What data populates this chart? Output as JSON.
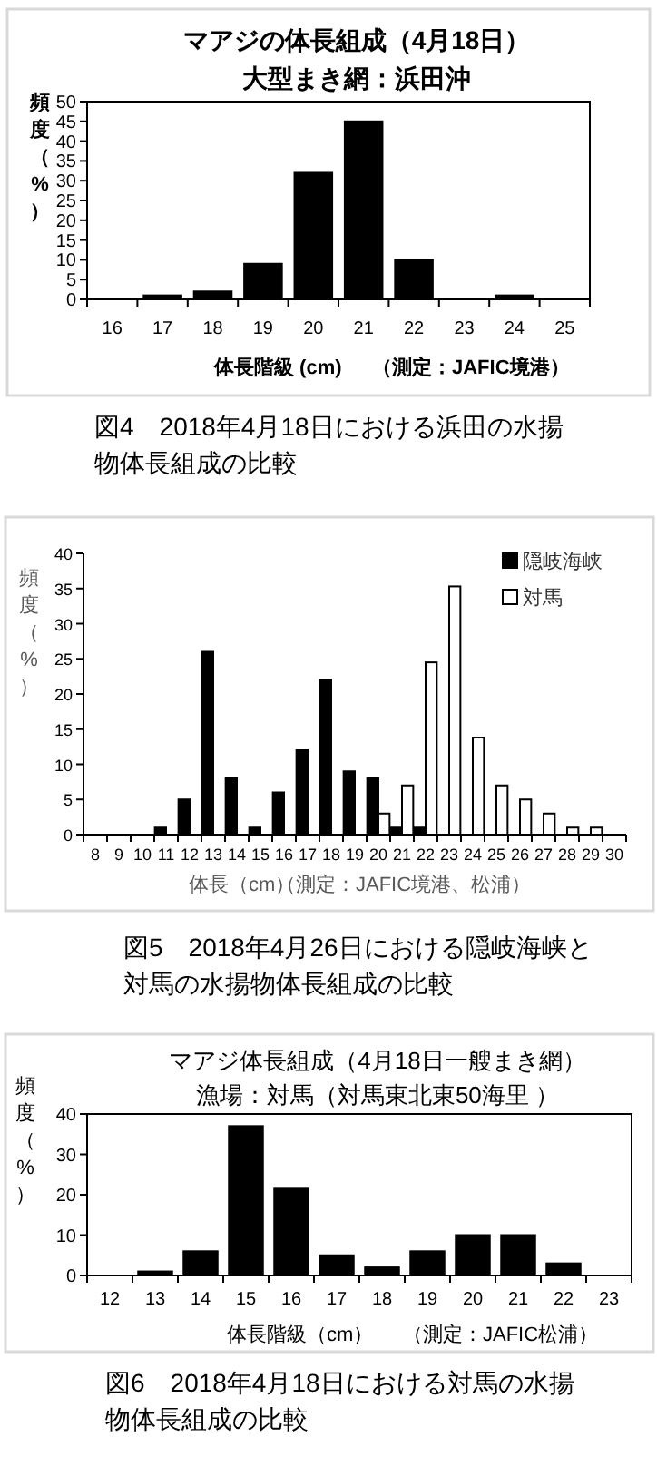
{
  "chart_data": [
    {
      "type": "bar",
      "title": "マアジの体長組成（4月18日）",
      "subtitle": "大型まき網：浜田沖",
      "ylabel": "頻度（%）",
      "xlabel": "体長階級 (cm)",
      "categories": [
        "16",
        "17",
        "18",
        "19",
        "20",
        "21",
        "22",
        "23",
        "24",
        "25"
      ],
      "values": [
        0,
        1,
        2,
        9,
        32,
        45,
        10,
        0,
        1,
        0
      ],
      "color": "#000000",
      "ylim": [
        0,
        50
      ],
      "yticks": [
        0,
        5,
        10,
        15,
        20,
        25,
        30,
        35,
        40,
        45,
        50
      ],
      "annotations": [
        "（測定：JAFIC境港）",
        "図4　2018年4月18日における浜田の水揚物体長組成の比較"
      ]
    },
    {
      "type": "bar",
      "ylabel": "頻度（%）",
      "xlabel": "体長（cm）",
      "categories": [
        "8",
        "9",
        "10",
        "11",
        "12",
        "13",
        "14",
        "15",
        "16",
        "17",
        "18",
        "19",
        "20",
        "21",
        "22",
        "23",
        "24",
        "25",
        "26",
        "27",
        "28",
        "29",
        "30"
      ],
      "series": [
        {
          "name": "隠岐海峡",
          "color": "#000000",
          "values": [
            null,
            null,
            null,
            1,
            5,
            26,
            8,
            1,
            6,
            12,
            22,
            9,
            8,
            1,
            1,
            null,
            null,
            null,
            null,
            null,
            null,
            null,
            null
          ]
        },
        {
          "name": "対馬",
          "color": "#ffffff",
          "values": [
            null,
            null,
            null,
            null,
            null,
            null,
            null,
            null,
            null,
            null,
            null,
            null,
            3,
            7,
            24.5,
            35.3,
            13.8,
            7,
            5,
            3,
            1,
            1,
            null
          ]
        }
      ],
      "ylim": [
        0,
        40
      ],
      "yticks": [
        0,
        5,
        10,
        15,
        20,
        25,
        30,
        35,
        40
      ],
      "legend": "top right",
      "annotations": [
        "（測定：JAFIC境港、松浦）",
        "図5　2018年4月26日における隠岐海峡と対馬の水揚物体長組成の比較"
      ]
    },
    {
      "type": "bar",
      "title": "マアジ体長組成（4月18日一艘まき網）",
      "subtitle": "漁場：対馬（対馬東北東50海里 ）",
      "ylabel": "頻度（%）",
      "xlabel": "体長階級（cm）",
      "categories": [
        "12",
        "13",
        "14",
        "15",
        "16",
        "17",
        "18",
        "19",
        "20",
        "21",
        "22",
        "23"
      ],
      "values": [
        0,
        1,
        6,
        37,
        21.5,
        5,
        2,
        6,
        10,
        10,
        3,
        0
      ],
      "color": "#000000",
      "ylim": [
        0,
        40
      ],
      "yticks": [
        0,
        10,
        20,
        30,
        40
      ],
      "annotations": [
        "（測定：JAFIC松浦）",
        "図6　2018年4月18日における対馬の水揚物体長組成の比較"
      ]
    }
  ]
}
